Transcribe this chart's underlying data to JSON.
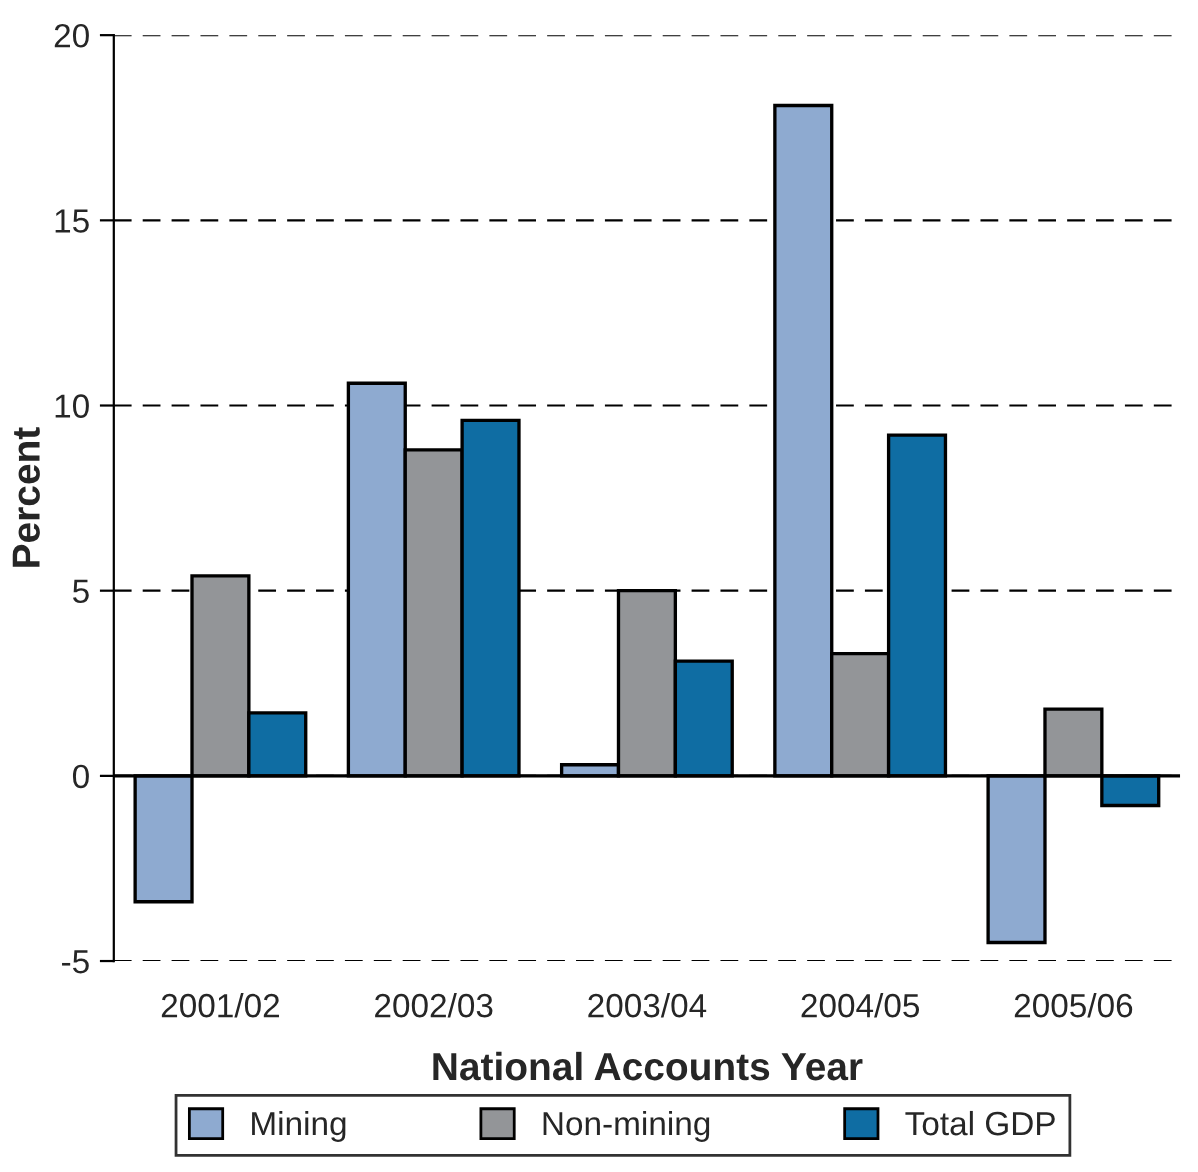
{
  "chart_data": {
    "type": "bar",
    "xlabel": "National Accounts Year",
    "ylabel": "Percent",
    "categories": [
      "2001/02",
      "2002/03",
      "2003/04",
      "2004/05",
      "2005/06"
    ],
    "series": [
      {
        "name": "Mining",
        "color": "#8eaad0",
        "values": [
          -3.4,
          10.6,
          0.3,
          18.1,
          -4.5
        ]
      },
      {
        "name": "Non-mining",
        "color": "#939598",
        "values": [
          5.4,
          8.8,
          5.0,
          3.3,
          1.8
        ]
      },
      {
        "name": "Total GDP",
        "color": "#0f6da3",
        "values": [
          1.7,
          9.6,
          3.1,
          9.2,
          -0.8
        ]
      }
    ],
    "ylim": [
      -5,
      20
    ],
    "yticks": [
      -5,
      0,
      5,
      10,
      15,
      20
    ],
    "grid": "y",
    "legend": "bottom",
    "ref_lines": [
      {
        "axis": "y",
        "value": 0,
        "color": "#000000"
      }
    ]
  }
}
